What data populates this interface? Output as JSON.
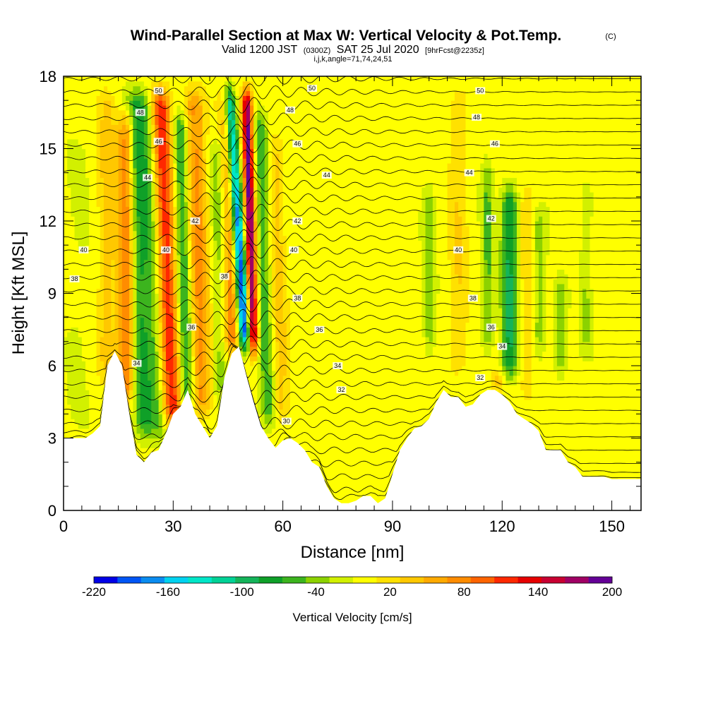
{
  "title": {
    "main": "Wind-Parallel Section at Max W: Vertical Velocity & Pot.Temp.",
    "copyright": "(C)",
    "valid_pre": "Valid 1200 JST",
    "valid_utc": "(0300Z)",
    "valid_date": "SAT 25 Jul 2020",
    "fcst": "[9hrFcst@2235z]",
    "indices": "i,j,k,angle=71,74,24,51"
  },
  "chart_data": {
    "type": "heatmap",
    "xlabel": "Distance [nm]",
    "ylabel": "Height [Kft MSL]",
    "xlim": [
      0,
      158
    ],
    "ylim": [
      0,
      18
    ],
    "xticks": [
      0,
      30,
      60,
      90,
      120,
      150
    ],
    "yticks": [
      0,
      3,
      6,
      9,
      12,
      15,
      18
    ],
    "colorbar": {
      "label": "Vertical Velocity [cm/s]",
      "tick_labels": [
        "-220",
        "-160",
        "-100",
        "-40",
        "20",
        "80",
        "140",
        "200"
      ],
      "tick_values": [
        -220,
        -160,
        -100,
        -40,
        20,
        80,
        140,
        200
      ],
      "min": -220,
      "max": 200,
      "levels": [
        -220,
        -200,
        -180,
        -160,
        -140,
        -120,
        -100,
        -80,
        -60,
        -40,
        -20,
        0,
        20,
        40,
        60,
        80,
        100,
        120,
        140,
        160,
        180,
        200
      ],
      "colors": [
        "#0000e6",
        "#0055f5",
        "#0a8cf0",
        "#00d2f0",
        "#00e6c8",
        "#00d296",
        "#14b45a",
        "#0fa028",
        "#3cb41e",
        "#8cd200",
        "#d2f000",
        "#ffff00",
        "#ffe100",
        "#ffc800",
        "#ffaa00",
        "#ff8c00",
        "#ff6400",
        "#ff2800",
        "#e60000",
        "#c80032",
        "#a00064",
        "#640096"
      ]
    },
    "terrain_kft": [
      [
        0,
        3.0
      ],
      [
        6,
        3.0
      ],
      [
        8,
        3.2
      ],
      [
        10,
        3.5
      ],
      [
        12,
        6.0
      ],
      [
        14,
        6.6
      ],
      [
        16,
        6.0
      ],
      [
        18,
        4.0
      ],
      [
        20,
        2.3
      ],
      [
        22,
        2.0
      ],
      [
        24,
        2.4
      ],
      [
        26,
        2.5
      ],
      [
        28,
        3.2
      ],
      [
        30,
        4.0
      ],
      [
        32,
        4.3
      ],
      [
        34,
        5.0
      ],
      [
        36,
        4.0
      ],
      [
        38,
        3.5
      ],
      [
        40,
        3.0
      ],
      [
        42,
        3.5
      ],
      [
        44,
        5.5
      ],
      [
        46,
        6.5
      ],
      [
        48,
        6.8
      ],
      [
        50,
        5.6
      ],
      [
        52,
        4.5
      ],
      [
        54,
        3.5
      ],
      [
        56,
        3.0
      ],
      [
        58,
        2.6
      ],
      [
        60,
        2.9
      ],
      [
        62,
        3.0
      ],
      [
        64,
        2.8
      ],
      [
        66,
        2.5
      ],
      [
        68,
        2.0
      ],
      [
        70,
        1.8
      ],
      [
        72,
        1.0
      ],
      [
        74,
        0.5
      ],
      [
        76,
        0.3
      ],
      [
        78,
        0.3
      ],
      [
        80,
        0.4
      ],
      [
        82,
        0.6
      ],
      [
        84,
        0.6
      ],
      [
        86,
        0.3
      ],
      [
        88,
        0.5
      ],
      [
        90,
        1.5
      ],
      [
        92,
        2.5
      ],
      [
        94,
        3.0
      ],
      [
        96,
        3.4
      ],
      [
        98,
        3.5
      ],
      [
        100,
        3.8
      ],
      [
        102,
        4.5
      ],
      [
        104,
        5.0
      ],
      [
        106,
        4.7
      ],
      [
        108,
        4.7
      ],
      [
        110,
        4.3
      ],
      [
        112,
        4.4
      ],
      [
        114,
        4.8
      ],
      [
        116,
        5.0
      ],
      [
        118,
        5.0
      ],
      [
        120,
        4.8
      ],
      [
        122,
        4.5
      ],
      [
        124,
        4.0
      ],
      [
        126,
        3.8
      ],
      [
        128,
        3.6
      ],
      [
        130,
        3.3
      ],
      [
        132,
        2.5
      ],
      [
        134,
        2.5
      ],
      [
        136,
        2.5
      ],
      [
        138,
        2.0
      ],
      [
        140,
        1.8
      ],
      [
        142,
        1.4
      ],
      [
        144,
        1.4
      ],
      [
        146,
        1.4
      ],
      [
        148,
        1.4
      ],
      [
        150,
        1.3
      ],
      [
        152,
        1.3
      ],
      [
        154,
        1.3
      ],
      [
        156,
        1.3
      ],
      [
        158,
        1.3
      ]
    ],
    "w_features": [
      {
        "x": 4,
        "half_width": 3,
        "y0": 3,
        "y1": 16,
        "w": -10,
        "tilt": 0
      },
      {
        "x": 12,
        "half_width": 2.5,
        "y0": 5,
        "y1": 18,
        "w": 40,
        "tilt": 0
      },
      {
        "x": 17,
        "half_width": 2.2,
        "y0": 4,
        "y1": 17,
        "w": 90,
        "tilt": 0
      },
      {
        "x": 22,
        "half_width": 2.5,
        "y0": 2.5,
        "y1": 18,
        "w": -60,
        "tilt": -1
      },
      {
        "x": 26,
        "half_width": 2.8,
        "y0": 2.5,
        "y1": 18,
        "w": -50,
        "tilt": -1.5
      },
      {
        "x": 30,
        "half_width": 2.6,
        "y0": 3,
        "y1": 18,
        "w": 130,
        "tilt": -1.5
      },
      {
        "x": 34,
        "half_width": 2.0,
        "y0": 3.5,
        "y1": 17,
        "w": -80,
        "tilt": -1
      },
      {
        "x": 38,
        "half_width": 2.8,
        "y0": 3.5,
        "y1": 18,
        "w": 80,
        "tilt": -1
      },
      {
        "x": 43,
        "half_width": 2.0,
        "y0": 4,
        "y1": 16,
        "w": -40,
        "tilt": -0.5
      },
      {
        "x": 46,
        "half_width": 2.2,
        "y0": 6,
        "y1": 18,
        "w": 90,
        "tilt": -0.5
      },
      {
        "x": 50,
        "half_width": 1.6,
        "y0": 6.2,
        "y1": 18,
        "w": -210,
        "tilt": -2.5
      },
      {
        "x": 52,
        "half_width": 1.4,
        "y0": 6.0,
        "y1": 18,
        "w": 200,
        "tilt": -1
      },
      {
        "x": 56,
        "half_width": 1.8,
        "y0": 3,
        "y1": 17,
        "w": -60,
        "tilt": -1
      },
      {
        "x": 60,
        "half_width": 2.0,
        "y0": 3,
        "y1": 16,
        "w": 40,
        "tilt": -1
      },
      {
        "x": 100,
        "half_width": 1.5,
        "y0": 6,
        "y1": 14,
        "w": -40,
        "tilt": 0
      },
      {
        "x": 108,
        "half_width": 2.5,
        "y0": 5,
        "y1": 18,
        "w": 30,
        "tilt": 0
      },
      {
        "x": 116,
        "half_width": 1.5,
        "y0": 6,
        "y1": 15,
        "w": -50,
        "tilt": 0
      },
      {
        "x": 122,
        "half_width": 2.2,
        "y0": 5,
        "y1": 14,
        "w": -90,
        "tilt": 0
      },
      {
        "x": 119,
        "half_width": 1.5,
        "y0": 4.8,
        "y1": 6,
        "w": 90,
        "tilt": 0
      },
      {
        "x": 127,
        "half_width": 2,
        "y0": 4,
        "y1": 14,
        "w": 30,
        "tilt": 0
      },
      {
        "x": 130,
        "half_width": 1.8,
        "y0": 6,
        "y1": 13,
        "w": -40,
        "tilt": 0
      },
      {
        "x": 136,
        "half_width": 1.5,
        "y0": 5,
        "y1": 10,
        "w": -50,
        "tilt": 0
      },
      {
        "x": 143,
        "half_width": 1.5,
        "y0": 6,
        "y1": 14,
        "w": -30,
        "tilt": 0
      }
    ],
    "isentrope_labels": [
      {
        "x": 5.5,
        "y": 10.8,
        "text": "40"
      },
      {
        "x": 3,
        "y": 9.6,
        "text": "38"
      },
      {
        "x": 20,
        "y": 6.1,
        "text": "34"
      },
      {
        "x": 21,
        "y": 16.5,
        "text": "48"
      },
      {
        "x": 23,
        "y": 13.8,
        "text": "44"
      },
      {
        "x": 26,
        "y": 17.4,
        "text": "50"
      },
      {
        "x": 26,
        "y": 15.3,
        "text": "46"
      },
      {
        "x": 28,
        "y": 10.8,
        "text": "40"
      },
      {
        "x": 36,
        "y": 12.0,
        "text": "42"
      },
      {
        "x": 35,
        "y": 7.6,
        "text": "36"
      },
      {
        "x": 44,
        "y": 9.7,
        "text": "38"
      },
      {
        "x": 62,
        "y": 16.6,
        "text": "48"
      },
      {
        "x": 64,
        "y": 15.2,
        "text": "46"
      },
      {
        "x": 64,
        "y": 12.0,
        "text": "42"
      },
      {
        "x": 63,
        "y": 10.8,
        "text": "40"
      },
      {
        "x": 64,
        "y": 8.8,
        "text": "38"
      },
      {
        "x": 70,
        "y": 7.5,
        "text": "36"
      },
      {
        "x": 68,
        "y": 17.5,
        "text": "50"
      },
      {
        "x": 72,
        "y": 13.9,
        "text": "44"
      },
      {
        "x": 75,
        "y": 6.0,
        "text": "34"
      },
      {
        "x": 76,
        "y": 5.0,
        "text": "32"
      },
      {
        "x": 61,
        "y": 3.7,
        "text": "30"
      },
      {
        "x": 108,
        "y": 10.8,
        "text": "40"
      },
      {
        "x": 112,
        "y": 8.8,
        "text": "38"
      },
      {
        "x": 114,
        "y": 17.4,
        "text": "50"
      },
      {
        "x": 113,
        "y": 16.3,
        "text": "48"
      },
      {
        "x": 118,
        "y": 15.2,
        "text": "46"
      },
      {
        "x": 111,
        "y": 14.0,
        "text": "44"
      },
      {
        "x": 117,
        "y": 12.1,
        "text": "42"
      },
      {
        "x": 117,
        "y": 7.6,
        "text": "36"
      },
      {
        "x": 120,
        "y": 6.8,
        "text": "34"
      },
      {
        "x": 114,
        "y": 5.5,
        "text": "32"
      }
    ]
  }
}
